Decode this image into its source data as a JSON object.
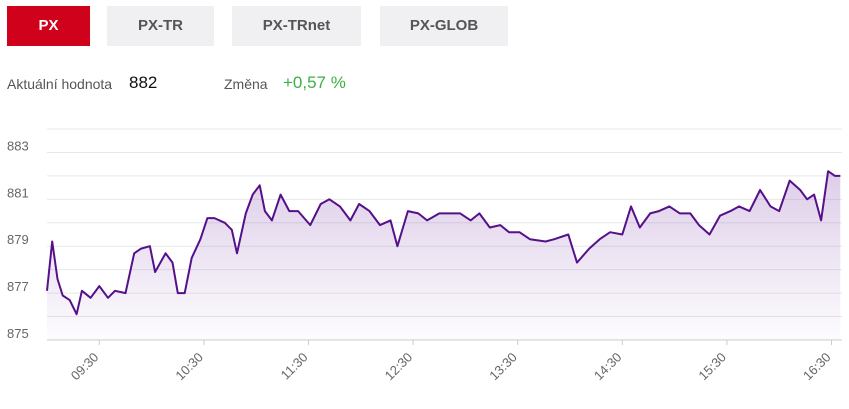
{
  "tabs": [
    {
      "label": "PX",
      "active": true
    },
    {
      "label": "PX-TR",
      "active": false
    },
    {
      "label": "PX-TRnet",
      "active": false
    },
    {
      "label": "PX-GLOB",
      "active": false
    }
  ],
  "info": {
    "current_label": "Aktuální hodnota",
    "current_value": "882",
    "change_label": "Změna",
    "change_value": "+0,57 %"
  },
  "chart_data": {
    "type": "line",
    "x": [
      "09:00",
      "09:03",
      "09:06",
      "09:09",
      "09:13",
      "09:17",
      "09:20",
      "09:25",
      "09:30",
      "09:35",
      "09:39",
      "09:45",
      "09:50",
      "09:54",
      "09:59",
      "10:02",
      "10:08",
      "10:12",
      "10:15",
      "10:19",
      "10:23",
      "10:28",
      "10:32",
      "10:36",
      "10:42",
      "10:46",
      "10:49",
      "10:54",
      "10:58",
      "11:02",
      "11:05",
      "11:09",
      "11:14",
      "11:19",
      "11:24",
      "11:31",
      "11:37",
      "11:42",
      "11:48",
      "11:54",
      "11:59",
      "12:05",
      "12:11",
      "12:17",
      "12:21",
      "12:27",
      "12:33",
      "12:38",
      "12:45",
      "12:51",
      "12:57",
      "13:03",
      "13:08",
      "13:14",
      "13:20",
      "13:25",
      "13:31",
      "13:37",
      "13:46",
      "13:51",
      "13:59",
      "14:04",
      "14:11",
      "14:17",
      "14:23",
      "14:30",
      "14:35",
      "14:40",
      "14:46",
      "14:51",
      "14:57",
      "15:03",
      "15:09",
      "15:14",
      "15:20",
      "15:26",
      "15:32",
      "15:37",
      "15:43",
      "15:49",
      "15:55",
      "16:00",
      "16:06",
      "16:12",
      "16:16",
      "16:20",
      "16:24",
      "16:28",
      "16:32",
      "16:35"
    ],
    "series": [
      {
        "name": "PX",
        "color": "#55108a",
        "values": [
          877.1,
          879.2,
          877.6,
          876.9,
          876.7,
          876.1,
          877.1,
          876.8,
          877.3,
          876.8,
          877.1,
          877.0,
          878.7,
          878.9,
          879.0,
          877.9,
          878.7,
          878.3,
          877.0,
          877.0,
          878.5,
          879.3,
          880.2,
          880.2,
          880.0,
          879.7,
          878.7,
          880.4,
          881.2,
          881.6,
          880.5,
          880.1,
          881.2,
          880.5,
          880.5,
          879.9,
          880.8,
          881.0,
          880.7,
          880.1,
          880.8,
          880.5,
          879.9,
          880.1,
          879.0,
          880.5,
          880.4,
          880.1,
          880.4,
          880.4,
          880.4,
          880.1,
          880.4,
          879.8,
          879.9,
          879.6,
          879.6,
          879.3,
          879.2,
          879.3,
          879.5,
          878.3,
          878.9,
          879.3,
          879.6,
          879.5,
          880.7,
          879.8,
          880.4,
          880.5,
          880.7,
          880.4,
          880.4,
          879.9,
          879.5,
          880.3,
          880.5,
          880.7,
          880.5,
          881.4,
          880.7,
          880.5,
          881.8,
          881.4,
          881.0,
          881.2,
          880.1,
          882.2,
          882.0,
          882.0
        ]
      }
    ],
    "xlim": [
      "09:00",
      "16:36"
    ],
    "xticks": [
      "09:30",
      "10:30",
      "11:30",
      "12:30",
      "13:30",
      "14:30",
      "15:30",
      "16:30"
    ],
    "ylim": [
      875,
      884
    ],
    "yticks": [
      875,
      877,
      879,
      881,
      883
    ],
    "minor_yticks": [
      876,
      878,
      880,
      882,
      884
    ],
    "grid": true
  }
}
